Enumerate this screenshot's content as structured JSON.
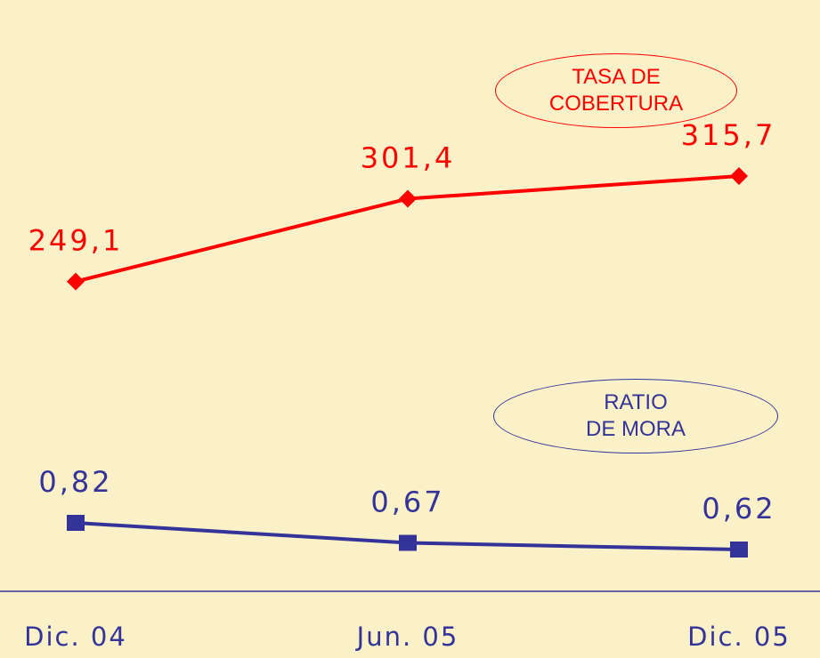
{
  "chart_data": {
    "type": "line",
    "categories": [
      "Dic. 04",
      "Jun. 05",
      "Dic. 05"
    ],
    "series": [
      {
        "name": "TASA DE\nCOBERTURA",
        "color": "#ff0000",
        "marker": "diamond",
        "values": [
          249.1,
          301.4,
          315.7
        ],
        "value_labels": [
          "249,1",
          "301,4",
          "315,7"
        ]
      },
      {
        "name": "RATIO\nDE MORA",
        "color": "#333399",
        "marker": "square",
        "values": [
          0.82,
          0.67,
          0.62
        ],
        "value_labels": [
          "0,82",
          "0,67",
          "0,62"
        ]
      }
    ]
  }
}
